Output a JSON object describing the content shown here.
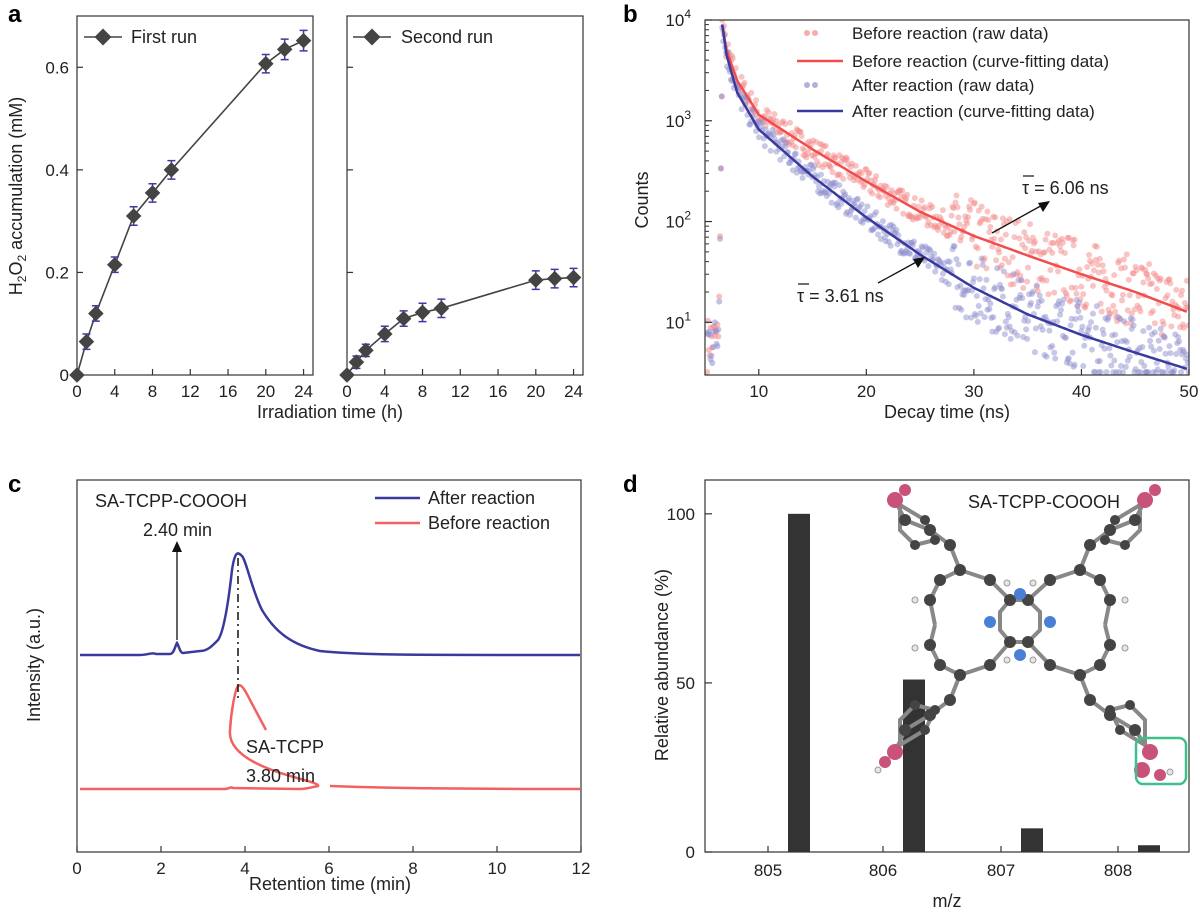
{
  "panels": {
    "a": {
      "letter": "a"
    },
    "b": {
      "letter": "b"
    },
    "c": {
      "letter": "c"
    },
    "d": {
      "letter": "d"
    }
  },
  "chart_data": [
    {
      "id": "a",
      "type": "line",
      "ylabel": "H2O2 accumulation (mM)",
      "xlabel": "Irradiation time (h)",
      "ylim": [
        0,
        0.7
      ],
      "yticks": [
        "0",
        "0.2",
        "0.4",
        "0.6"
      ],
      "ytick_values": [
        0,
        0.2,
        0.4,
        0.6
      ],
      "xlim": [
        0,
        25
      ],
      "xticks": [
        "0",
        "4",
        "8",
        "12",
        "16",
        "20",
        "24"
      ],
      "xtick_values": [
        0,
        4,
        8,
        12,
        16,
        20,
        24
      ],
      "subplots": [
        {
          "legend": "First run",
          "x": [
            0,
            1,
            2,
            4,
            6,
            8,
            10,
            20,
            22,
            24
          ],
          "y": [
            0,
            0.065,
            0.12,
            0.215,
            0.31,
            0.355,
            0.4,
            0.607,
            0.635,
            0.652
          ],
          "err": [
            0,
            0.015,
            0.015,
            0.015,
            0.018,
            0.018,
            0.018,
            0.018,
            0.02,
            0.02
          ]
        },
        {
          "legend": "Second run",
          "x": [
            0,
            1,
            2,
            4,
            6,
            8,
            10,
            20,
            22,
            24
          ],
          "y": [
            0,
            0.025,
            0.048,
            0.08,
            0.11,
            0.122,
            0.13,
            0.185,
            0.188,
            0.19
          ],
          "err": [
            0,
            0.012,
            0.012,
            0.015,
            0.015,
            0.018,
            0.018,
            0.018,
            0.018,
            0.018
          ]
        }
      ]
    },
    {
      "id": "b",
      "type": "scatter",
      "xlabel": "Decay time (ns)",
      "ylabel": "Counts",
      "xlim": [
        5,
        50
      ],
      "xticks": [
        "10",
        "20",
        "30",
        "40",
        "50"
      ],
      "xtick_values": [
        10,
        20,
        30,
        40,
        50
      ],
      "ylim": [
        3,
        10000
      ],
      "yscale": "log",
      "yticks_base": [
        "10",
        "10",
        "10",
        "10"
      ],
      "yticks_exp": [
        "1",
        "2",
        "3",
        "4"
      ],
      "ytick_values": [
        10,
        100,
        1000,
        10000
      ],
      "legend": [
        "Before reaction (raw data)",
        "Before reaction (curve-fitting data)",
        "After reaction (raw data)",
        "After reaction (curve-fitting data)"
      ],
      "annotations": [
        {
          "tau_symbol": "τ",
          "text": " = 6.06 ns"
        },
        {
          "tau_symbol": "τ",
          "text": " = 3.61 ns"
        }
      ],
      "series": [
        {
          "name": "Before reaction",
          "color": "#f24d4d",
          "raw_color": "#f48a8a",
          "fit_x": [
            6.6,
            7,
            8,
            10,
            15,
            20,
            25,
            30,
            35,
            40,
            45,
            50
          ],
          "fit_y": [
            9000,
            5000,
            2500,
            1150,
            520,
            250,
            125,
            72,
            46,
            30,
            20,
            12.5
          ]
        },
        {
          "name": "After reaction",
          "color": "#3a3a9e",
          "raw_color": "#8f8fd0",
          "fit_x": [
            6.6,
            7,
            8,
            10,
            15,
            20,
            25,
            30,
            35,
            40,
            45,
            50
          ],
          "fit_y": [
            9000,
            4500,
            1900,
            820,
            280,
            110,
            47,
            22,
            12,
            7.5,
            5,
            3.4
          ]
        }
      ]
    },
    {
      "id": "c",
      "type": "line",
      "xlabel": "Retention time (min)",
      "ylabel": "Intensity (a.u.)",
      "xlim": [
        0,
        12
      ],
      "xticks": [
        "0",
        "2",
        "4",
        "6",
        "8",
        "10",
        "12"
      ],
      "xtick_values": [
        0,
        2,
        4,
        6,
        8,
        10,
        12
      ],
      "legend": [
        "After reaction",
        "Before reaction"
      ],
      "annotations": {
        "compound": "SA-TCPP-COOOH",
        "compound_time": "2.40 min",
        "peak_name": "SA-TCPP",
        "peak_time": "3.80 min"
      },
      "series": [
        {
          "name": "After reaction",
          "color": "#3a3a9e"
        },
        {
          "name": "Before reaction",
          "color": "#f26060"
        }
      ]
    },
    {
      "id": "d",
      "type": "bar",
      "xlabel": "m/z",
      "ylabel": "Relative abundance (%)",
      "categories": [
        "805",
        "806",
        "807",
        "808"
      ],
      "values": [
        100,
        51,
        7,
        2
      ],
      "ylim": [
        0,
        110
      ],
      "yticks": [
        "0",
        "50",
        "100"
      ],
      "ytick_values": [
        0,
        50,
        100
      ],
      "inset_label": "SA-TCPP-COOOH"
    }
  ]
}
